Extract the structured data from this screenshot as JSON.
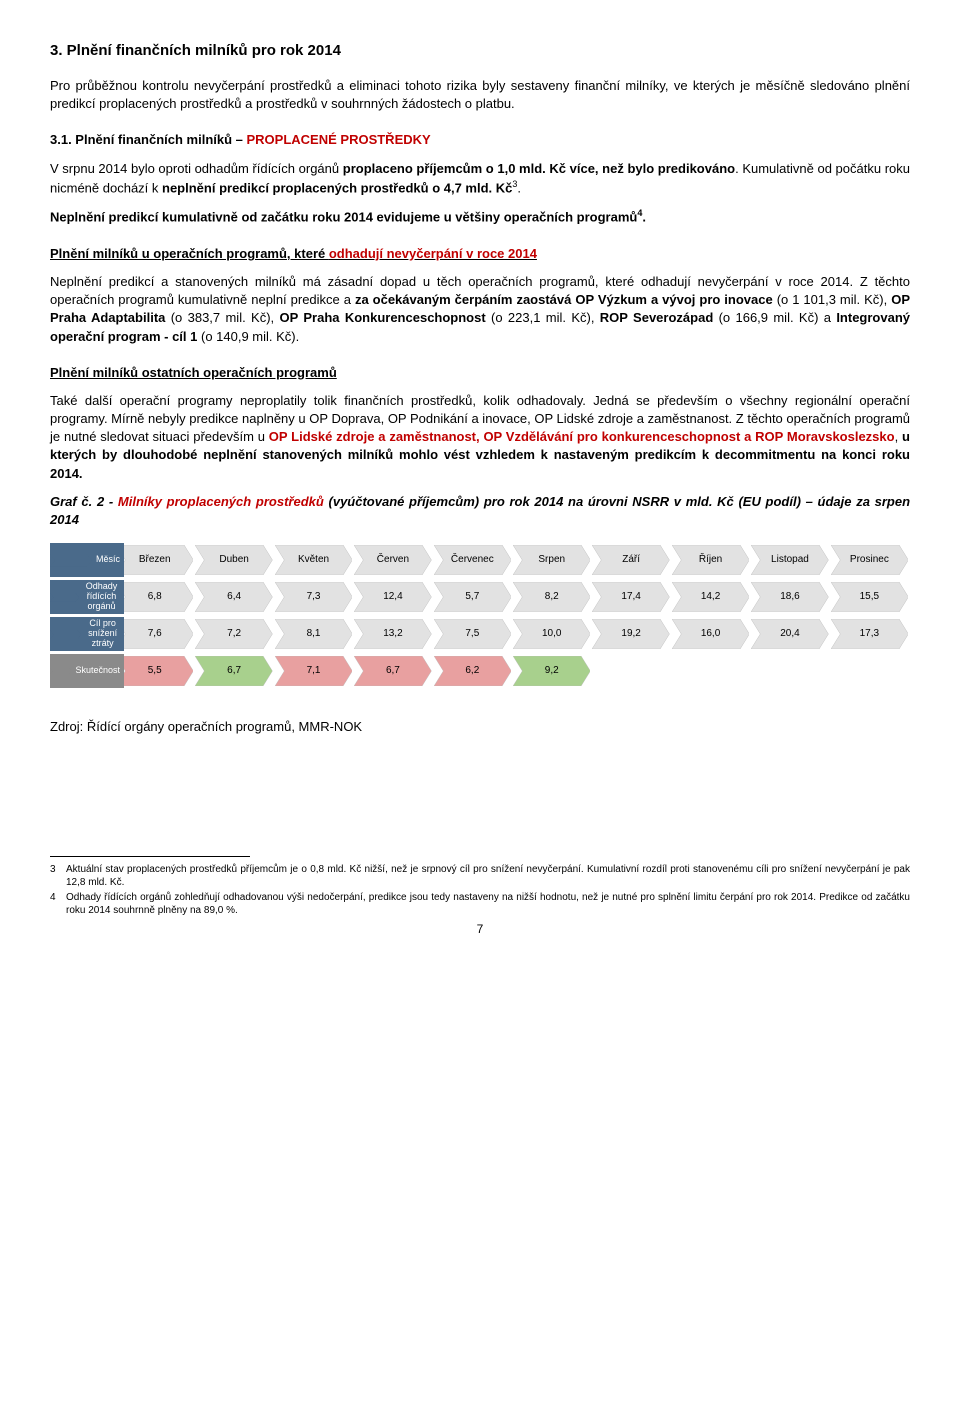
{
  "heading_main": "3. Plnění finančních milníků pro rok 2014",
  "para1": "Pro průběžnou kontrolu nevyčerpání prostředků a eliminaci tohoto rizika byly sestaveny finanční milníky, ve kterých je měsíčně sledováno plnění predikcí proplacených prostředků a prostředků v souhrnných žádostech o platbu.",
  "sub_31_prefix": "3.1. Plnění finančních milníků – ",
  "sub_31_red": "PROPLACENÉ PROSTŘEDKY",
  "para2_a": "V srpnu 2014 bylo oproti odhadům řídících orgánů ",
  "para2_b": "proplaceno příjemcům o 1,0 mld. Kč více, než bylo predikováno",
  "para2_c": ". Kumulativně od počátku roku nicméně dochází k ",
  "para2_d": "neplnění predikcí proplacených prostředků o 4,7 mld. Kč",
  "para2_sup": "3",
  "para2_e": ".",
  "para3_a": "Neplnění predikcí kumulativně od začátku roku 2014 evidujeme u většiny operačních programů",
  "para3_sup": "4",
  "para3_b": ".",
  "sub_plneni_a": "Plnění milníků u operačních programů, které ",
  "sub_plneni_b": "odhadují nevyčerpání v roce 2014",
  "para4_a": "Neplnění predikcí a stanovených milníků má zásadní dopad u těch operačních programů, které odhadují nevyčerpání v roce 2014. Z těchto operačních programů kumulativně neplní predikce a ",
  "para4_b": "za očekávaným čerpáním zaostává OP Výzkum a vývoj pro inovace",
  "para4_c": " (o 1 101,3 mil. Kč), ",
  "para4_d": "OP Praha Adaptabilita",
  "para4_e": " (o 383,7 mil. Kč), ",
  "para4_f": "OP Praha Konkurenceschopnost",
  "para4_g": " (o 223,1 mil. Kč), ",
  "para4_h": "ROP Severozápad",
  "para4_i": " (o 166,9 mil. Kč) a ",
  "para4_j": "Integrovaný operační program - cíl 1",
  "para4_k": " (o 140,9 mil. Kč).",
  "sub_ostatni": "Plnění milníků ostatních operačních programů",
  "para5_a": "Také další operační programy neproplatily tolik finančních prostředků, kolik odhadovaly. Jedná se především o všechny regionální operační programy. Mírně nebyly predikce naplněny u OP Doprava, OP Podnikání a inovace, OP Lidské zdroje a zaměstnanost. Z těchto operačních programů je nutné sledovat situaci především u ",
  "para5_b": "OP Lidské zdroje a zaměstnanost, OP Vzdělávání pro konkurenceschopnost a ROP Moravskoslezsko",
  "para5_c": ", ",
  "para5_d": "u kterých by dlouhodobé neplnění stanovených milníků mohlo vést vzhledem k nastaveným predikcím k decommitmentu na konci roku 2014.",
  "graf_a": "Graf č. 2 - ",
  "graf_b": "Milníky proplacených prostředků",
  "graf_c": " (vyúčtované příjemcům) pro rok 2014 na úrovni NSRR v mld. Kč (EU podíl) – údaje za srpen 2014",
  "chart": {
    "colors": {
      "label_blue": "#4a6a8a",
      "label_gray": "#8a8a8a",
      "chev_light": "#e2e2e2",
      "chev_green": "#a8d08d",
      "chev_red": "#e8a0a0"
    },
    "rows": [
      {
        "label": "Měsíc",
        "label_bg": "blue",
        "color": "light",
        "cells": [
          "Březen",
          "Duben",
          "Květen",
          "Červen",
          "Červenec",
          "Srpen",
          "Září",
          "Říjen",
          "Listopad",
          "Prosinec"
        ]
      },
      {
        "label": "Odhady řídících orgánů",
        "label_bg": "blue",
        "color": "light",
        "cells": [
          "6,8",
          "6,4",
          "7,3",
          "12,4",
          "5,7",
          "8,2",
          "17,4",
          "14,2",
          "18,6",
          "15,5"
        ]
      },
      {
        "label": "Cíl pro snížení ztráty",
        "label_bg": "blue",
        "color": "light",
        "cells": [
          "7,6",
          "7,2",
          "8,1",
          "13,2",
          "7,5",
          "10,0",
          "19,2",
          "16,0",
          "20,4",
          "17,3"
        ]
      },
      {
        "label": "Skutečnost",
        "label_bg": "gray",
        "color": "mixed",
        "cells": [
          "5,5",
          "6,7",
          "7,1",
          "6,7",
          "6,2",
          "9,2"
        ]
      }
    ],
    "row4_colors": [
      "red",
      "green",
      "red",
      "red",
      "red",
      "green"
    ]
  },
  "zdroj": "Zdroj: Řídící orgány operačních programů, MMR-NOK",
  "fn3_num": "3",
  "fn3": "Aktuální stav proplacených prostředků příjemcům je o 0,8 mld. Kč nižší, než je srpnový cíl pro snížení nevyčerpání. Kumulativní rozdíl proti stanovenému cíli pro snížení nevyčerpání je pak 12,8 mld. Kč.",
  "fn4_num": "4",
  "fn4": "Odhady řídících orgánů zohledňují odhadovanou výši nedočerpání, predikce jsou tedy nastaveny na nižší hodnotu, než je nutné pro splnění limitu čerpání pro rok 2014. Predikce od začátku roku 2014 souhrnně plněny na 89,0 %.",
  "page_num": "7"
}
